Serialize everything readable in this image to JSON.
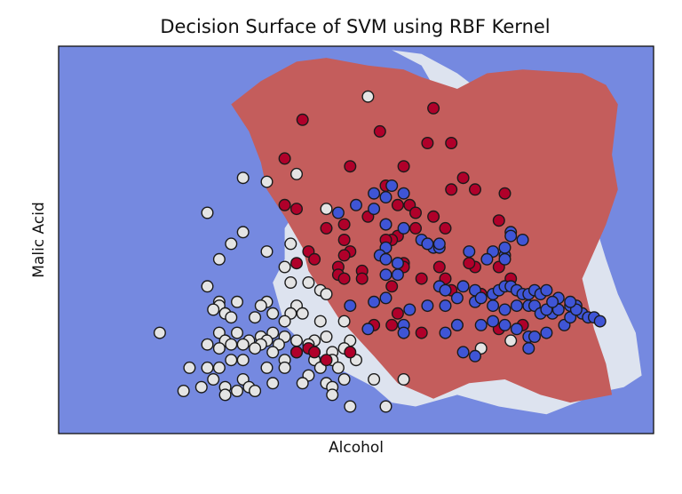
{
  "chart_data": {
    "type": "scatter",
    "title": "Decision Surface of SVM using RBF Kernel",
    "xlabel": "Alcohol",
    "ylabel": "Malic Acid",
    "xticks": [],
    "yticks": [],
    "xlim": [
      0,
      100
    ],
    "ylim": [
      0,
      100
    ],
    "grid": false,
    "colors": {
      "background_region": "#7589e0",
      "white_region": "#dde3ef",
      "red_region": "#c45d5c",
      "class_white": "#e4e4e4",
      "class_red": "#b0002a",
      "class_blue": "#3f55d6",
      "edge": "#1a1a1a"
    },
    "regions": [
      {
        "class": "white",
        "polygon": [
          [
            56,
            99
          ],
          [
            61,
            95
          ],
          [
            64,
            87
          ],
          [
            68,
            82
          ],
          [
            63,
            78
          ],
          [
            58,
            74
          ],
          [
            52,
            72
          ],
          [
            46,
            66
          ],
          [
            41,
            60
          ],
          [
            38,
            53
          ],
          [
            38,
            45
          ],
          [
            36,
            39
          ],
          [
            38,
            28
          ],
          [
            42,
            22
          ],
          [
            48,
            16
          ],
          [
            53,
            12
          ],
          [
            56,
            8
          ],
          [
            60,
            7
          ],
          [
            67,
            10
          ],
          [
            74,
            7
          ],
          [
            82,
            5
          ],
          [
            87,
            8
          ],
          [
            92,
            11
          ],
          [
            95,
            12
          ],
          [
            98,
            15
          ],
          [
            97,
            26
          ],
          [
            94,
            36
          ],
          [
            92,
            45
          ],
          [
            90,
            55
          ],
          [
            88,
            65
          ],
          [
            86,
            73
          ],
          [
            82,
            79
          ],
          [
            78,
            82
          ],
          [
            73,
            86
          ],
          [
            67,
            93
          ],
          [
            61,
            98
          ]
        ]
      },
      {
        "class": "red",
        "polygon": [
          [
            29,
            85
          ],
          [
            34,
            91
          ],
          [
            40,
            96
          ],
          [
            45,
            97
          ],
          [
            52,
            95
          ],
          [
            58,
            94
          ],
          [
            61,
            92
          ],
          [
            67,
            89
          ],
          [
            72,
            93
          ],
          [
            78,
            94
          ],
          [
            88,
            93
          ],
          [
            92,
            90
          ],
          [
            94,
            85
          ],
          [
            93,
            72
          ],
          [
            94,
            63
          ],
          [
            92,
            54
          ],
          [
            88,
            40
          ],
          [
            90,
            27
          ],
          [
            92,
            18
          ],
          [
            93,
            10
          ],
          [
            86,
            8
          ],
          [
            81,
            10
          ],
          [
            75,
            14
          ],
          [
            69,
            13
          ],
          [
            63,
            9
          ],
          [
            57,
            13
          ],
          [
            53,
            20
          ],
          [
            47,
            30
          ],
          [
            42,
            42
          ],
          [
            41,
            48
          ],
          [
            38,
            56
          ],
          [
            35,
            63
          ],
          [
            34,
            70
          ],
          [
            32,
            78
          ]
        ]
      }
    ],
    "series": [
      {
        "class": "white",
        "points": [
          [
            52,
            87
          ],
          [
            31,
            66
          ],
          [
            35,
            65
          ],
          [
            40,
            67
          ],
          [
            25,
            57
          ],
          [
            45,
            58
          ],
          [
            31,
            52
          ],
          [
            29,
            49
          ],
          [
            39,
            49
          ],
          [
            35,
            47
          ],
          [
            27,
            45
          ],
          [
            38,
            43
          ],
          [
            39,
            39
          ],
          [
            42,
            39
          ],
          [
            25,
            38
          ],
          [
            44,
            37
          ],
          [
            45,
            36
          ],
          [
            27,
            34
          ],
          [
            30,
            34
          ],
          [
            35,
            34
          ],
          [
            27,
            33
          ],
          [
            34,
            33
          ],
          [
            40,
            33
          ],
          [
            26,
            32
          ],
          [
            28,
            31
          ],
          [
            36,
            31
          ],
          [
            39,
            31
          ],
          [
            41,
            31
          ],
          [
            29,
            30
          ],
          [
            33,
            30
          ],
          [
            38,
            29
          ],
          [
            44,
            29
          ],
          [
            48,
            29
          ],
          [
            17,
            26
          ],
          [
            27,
            26
          ],
          [
            30,
            26
          ],
          [
            36,
            26
          ],
          [
            34,
            25
          ],
          [
            38,
            25
          ],
          [
            45,
            25
          ],
          [
            28,
            24
          ],
          [
            32,
            24
          ],
          [
            35,
            24
          ],
          [
            40,
            24
          ],
          [
            43,
            24
          ],
          [
            49,
            24
          ],
          [
            25,
            23
          ],
          [
            29,
            23
          ],
          [
            31,
            23
          ],
          [
            34,
            23
          ],
          [
            37,
            23
          ],
          [
            42,
            23
          ],
          [
            27,
            22
          ],
          [
            33,
            22
          ],
          [
            48,
            22
          ],
          [
            36,
            21
          ],
          [
            40,
            21
          ],
          [
            46,
            21
          ],
          [
            29,
            19
          ],
          [
            31,
            19
          ],
          [
            38,
            19
          ],
          [
            43,
            19
          ],
          [
            46,
            19
          ],
          [
            50,
            19
          ],
          [
            22,
            17
          ],
          [
            25,
            17
          ],
          [
            27,
            17
          ],
          [
            35,
            17
          ],
          [
            38,
            17
          ],
          [
            44,
            17
          ],
          [
            47,
            17
          ],
          [
            42,
            15
          ],
          [
            31,
            14
          ],
          [
            26,
            14
          ],
          [
            48,
            14
          ],
          [
            53,
            14
          ],
          [
            58,
            14
          ],
          [
            36,
            13
          ],
          [
            41,
            13
          ],
          [
            45,
            13
          ],
          [
            24,
            12
          ],
          [
            28,
            12
          ],
          [
            32,
            12
          ],
          [
            46,
            12
          ],
          [
            21,
            11
          ],
          [
            46,
            10
          ],
          [
            49,
            7
          ],
          [
            55,
            7
          ],
          [
            28,
            10
          ],
          [
            30,
            11
          ],
          [
            33,
            11
          ],
          [
            71,
            22
          ],
          [
            76,
            24
          ]
        ]
      },
      {
        "class": "red",
        "points": [
          [
            41,
            81
          ],
          [
            63,
            84
          ],
          [
            54,
            78
          ],
          [
            62,
            75
          ],
          [
            66,
            75
          ],
          [
            38,
            71
          ],
          [
            49,
            69
          ],
          [
            58,
            69
          ],
          [
            68,
            66
          ],
          [
            55,
            64
          ],
          [
            66,
            63
          ],
          [
            70,
            63
          ],
          [
            75,
            62
          ],
          [
            38,
            59
          ],
          [
            40,
            58
          ],
          [
            57,
            59
          ],
          [
            59,
            59
          ],
          [
            60,
            57
          ],
          [
            63,
            56
          ],
          [
            52,
            56
          ],
          [
            48,
            54
          ],
          [
            55,
            54
          ],
          [
            45,
            53
          ],
          [
            60,
            53
          ],
          [
            65,
            53
          ],
          [
            48,
            50
          ],
          [
            57,
            51
          ],
          [
            56,
            50
          ],
          [
            55,
            50
          ],
          [
            49,
            47
          ],
          [
            62,
            49
          ],
          [
            42,
            47
          ],
          [
            40,
            44
          ],
          [
            58,
            44
          ],
          [
            58,
            43
          ],
          [
            70,
            43
          ],
          [
            47,
            43
          ],
          [
            74,
            43
          ],
          [
            64,
            43
          ],
          [
            48,
            46
          ],
          [
            47,
            41
          ],
          [
            51,
            42
          ],
          [
            43,
            45
          ],
          [
            51,
            40
          ],
          [
            48,
            40
          ],
          [
            61,
            40
          ],
          [
            65,
            40
          ],
          [
            56,
            38
          ],
          [
            66,
            37
          ],
          [
            71,
            36
          ],
          [
            71,
            36
          ],
          [
            69,
            44
          ],
          [
            74,
            55
          ],
          [
            76,
            40
          ],
          [
            40,
            21
          ],
          [
            42,
            22
          ],
          [
            43,
            21
          ],
          [
            49,
            21
          ],
          [
            45,
            19
          ],
          [
            57,
            31
          ],
          [
            67,
            28
          ],
          [
            61,
            26
          ],
          [
            53,
            28
          ],
          [
            56,
            28
          ],
          [
            74,
            27
          ],
          [
            78,
            28
          ]
        ]
      },
      {
        "class": "blue",
        "points": [
          [
            58,
            53
          ],
          [
            47,
            57
          ],
          [
            50,
            59
          ],
          [
            53,
            62
          ],
          [
            55,
            61
          ],
          [
            56,
            64
          ],
          [
            58,
            62
          ],
          [
            53,
            58
          ],
          [
            55,
            54
          ],
          [
            61,
            50
          ],
          [
            63,
            48
          ],
          [
            62,
            49
          ],
          [
            64,
            48
          ],
          [
            64,
            49
          ],
          [
            55,
            48
          ],
          [
            54,
            46
          ],
          [
            55,
            45
          ],
          [
            57,
            44
          ],
          [
            57,
            44
          ],
          [
            57,
            41
          ],
          [
            55,
            41
          ],
          [
            69,
            47
          ],
          [
            73,
            47
          ],
          [
            75,
            46
          ],
          [
            72,
            45
          ],
          [
            75,
            48
          ],
          [
            76,
            52
          ],
          [
            76,
            51
          ],
          [
            78,
            50
          ],
          [
            75,
            45
          ],
          [
            64,
            38
          ],
          [
            65,
            37
          ],
          [
            68,
            38
          ],
          [
            70,
            37
          ],
          [
            73,
            36
          ],
          [
            74,
            37
          ],
          [
            75,
            38
          ],
          [
            76,
            38
          ],
          [
            77,
            37
          ],
          [
            78,
            36
          ],
          [
            79,
            36
          ],
          [
            80,
            37
          ],
          [
            81,
            36
          ],
          [
            82,
            37
          ],
          [
            84,
            35
          ],
          [
            67,
            35
          ],
          [
            70,
            34
          ],
          [
            71,
            35
          ],
          [
            73,
            33
          ],
          [
            75,
            32
          ],
          [
            77,
            33
          ],
          [
            79,
            33
          ],
          [
            80,
            33
          ],
          [
            81,
            31
          ],
          [
            83,
            31
          ],
          [
            84,
            32
          ],
          [
            86,
            33
          ],
          [
            87,
            33
          ],
          [
            88,
            31
          ],
          [
            89,
            30
          ],
          [
            90,
            30
          ],
          [
            91,
            29
          ],
          [
            55,
            35
          ],
          [
            53,
            34
          ],
          [
            49,
            33
          ],
          [
            65,
            33
          ],
          [
            62,
            33
          ],
          [
            59,
            32
          ],
          [
            52,
            27
          ],
          [
            58,
            28
          ],
          [
            58,
            26
          ],
          [
            65,
            26
          ],
          [
            67,
            28
          ],
          [
            71,
            28
          ],
          [
            73,
            29
          ],
          [
            75,
            28
          ],
          [
            77,
            27
          ],
          [
            79,
            25
          ],
          [
            80,
            25
          ],
          [
            82,
            26
          ],
          [
            85,
            28
          ],
          [
            86,
            30
          ],
          [
            82,
            32
          ],
          [
            87,
            32
          ],
          [
            83,
            34
          ],
          [
            86,
            34
          ],
          [
            79,
            22
          ],
          [
            70,
            20
          ],
          [
            68,
            21
          ]
        ]
      }
    ]
  }
}
